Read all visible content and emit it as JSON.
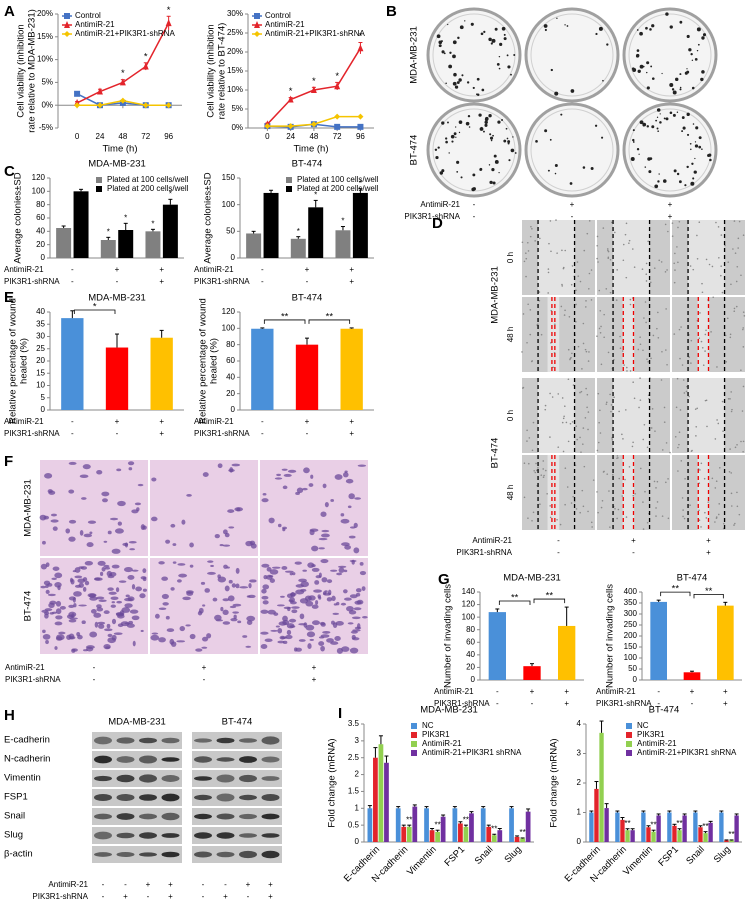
{
  "letters": [
    "A",
    "B",
    "C",
    "D",
    "E",
    "F",
    "G",
    "H",
    "I"
  ],
  "colony_images": {
    "rows": [
      "MDA-MB-231",
      "BT-474"
    ],
    "treatments": [
      {
        "name": "AntimiR-21",
        "values": [
          "-",
          "+",
          "+"
        ]
      },
      {
        "name": "PIK3R1-shRNA",
        "values": [
          "-",
          "-",
          "+"
        ]
      }
    ]
  },
  "wound_images": {
    "groups": [
      {
        "name": "MDA-MB-231",
        "rows": [
          "0 h",
          "48 h"
        ]
      },
      {
        "name": "BT-474",
        "rows": [
          "0 h",
          "48 h"
        ]
      }
    ],
    "treatments": [
      {
        "name": "AntimiR-21",
        "values": [
          "-",
          "+",
          "+"
        ]
      },
      {
        "name": "PIK3R1-shRNA",
        "values": [
          "-",
          "-",
          "+"
        ]
      }
    ]
  },
  "invasion_images": {
    "rows": [
      "MDA-MB-231",
      "BT-474"
    ],
    "treatments": [
      {
        "name": "AntimiR-21",
        "values": [
          "-",
          "+",
          "+"
        ]
      },
      {
        "name": "PIK3R1-shRNA",
        "values": [
          "-",
          "-",
          "+"
        ]
      }
    ]
  },
  "western_blot": {
    "cell_lines": [
      "MDA-MB-231",
      "BT-474"
    ],
    "proteins": [
      "E-cadherin",
      "N-cadherin",
      "Vimentin",
      "FSP1",
      "Snail",
      "Slug",
      "β-actin"
    ],
    "treatments": [
      {
        "name": "AntimiR-21",
        "values": [
          "-",
          "-",
          "+",
          "+",
          "-",
          "-",
          "+",
          "+"
        ]
      },
      {
        "name": "PIK3R1-shRNA",
        "values": [
          "-",
          "+",
          "-",
          "+",
          "-",
          "+",
          "-",
          "+"
        ]
      }
    ]
  },
  "chart_data": [
    {
      "type": "line",
      "ylabel": "Cell viability (inhibition rate relative to MDA-MB-231)",
      "xlabel": "Time (h)",
      "x": [
        0,
        24,
        48,
        72,
        96
      ],
      "xlim": [
        -20,
        110
      ],
      "xticks": [
        0,
        24,
        48,
        72,
        96
      ],
      "ylim": [
        -5,
        20
      ],
      "yticks": [
        {
          "value": -5,
          "label": "-5%"
        },
        {
          "value": 0,
          "label": "0%"
        },
        {
          "value": 5,
          "label": "5%"
        },
        {
          "value": 10,
          "label": "10%"
        },
        {
          "value": 15,
          "label": "15%"
        },
        {
          "value": 20,
          "label": "20%"
        }
      ],
      "legend": "upper left",
      "series": [
        {
          "name": "Control",
          "color": "#4472c4",
          "marker": "square",
          "values": [
            2.5,
            0,
            0.5,
            0,
            0
          ]
        },
        {
          "name": "AntimiR-21",
          "color": "#e3242b",
          "marker": "triangle",
          "values": [
            0.5,
            3,
            5,
            8.5,
            18
          ],
          "errors": [
            0.3,
            0.5,
            0.6,
            0.8,
            1.5
          ],
          "point_labels": [
            null,
            null,
            "*",
            "*",
            "*"
          ]
        },
        {
          "name": "AntimiR-21+PIK3R1-shRNA",
          "color": "#f5c400",
          "marker": "diamond",
          "values": [
            0,
            0,
            1,
            0,
            0
          ]
        }
      ]
    },
    {
      "type": "line",
      "ylabel": "Cell viability (inhibition rate relative to BT-474)",
      "xlabel": "Time (h)",
      "x": [
        0,
        24,
        48,
        72,
        96
      ],
      "xlim": [
        -20,
        110
      ],
      "xticks": [
        0,
        24,
        48,
        72,
        96
      ],
      "ylim": [
        0,
        30
      ],
      "yticks": [
        {
          "value": 0,
          "label": "0%"
        },
        {
          "value": 5,
          "label": "5%"
        },
        {
          "value": 10,
          "label": "10%"
        },
        {
          "value": 15,
          "label": "15%"
        },
        {
          "value": 20,
          "label": "20%"
        },
        {
          "value": 25,
          "label": "25%"
        },
        {
          "value": 30,
          "label": "30%"
        }
      ],
      "legend": "upper left",
      "series": [
        {
          "name": "Control",
          "color": "#4472c4",
          "marker": "square",
          "values": [
            0.5,
            0.3,
            1,
            0.3,
            0.3
          ]
        },
        {
          "name": "AntimiR-21",
          "color": "#e3242b",
          "marker": "triangle",
          "values": [
            1,
            7.5,
            10,
            11,
            21
          ],
          "errors": [
            0.3,
            0.5,
            0.7,
            1,
            1.5
          ],
          "point_labels": [
            null,
            "*",
            "*",
            "*",
            "*"
          ]
        },
        {
          "name": "AntimiR-21+PIK3R1-shRNA",
          "color": "#f5c400",
          "marker": "diamond",
          "values": [
            0.5,
            0.5,
            1,
            3,
            3
          ]
        }
      ]
    },
    {
      "type": "bar",
      "title": "MDA-MB-231",
      "ylabel": "Average colonies±SD",
      "categories": [
        null,
        null,
        null
      ],
      "ylim": [
        0,
        120
      ],
      "yticks": [
        0,
        20,
        40,
        60,
        80,
        100,
        120
      ],
      "legend": "upper right",
      "series": [
        {
          "name": "Plated at 100 cells/well",
          "color": "#808080",
          "values": [
            45,
            27,
            40
          ],
          "errors": [
            3,
            4,
            3
          ],
          "point_labels": [
            null,
            "*",
            "*"
          ]
        },
        {
          "name": "Plated at 200 cells/well",
          "color": "#000000",
          "values": [
            100,
            42,
            80
          ],
          "errors": [
            3,
            10,
            8
          ],
          "point_labels": [
            null,
            "*",
            "*"
          ]
        }
      ],
      "treatments": [
        {
          "name": "AntimiR-21",
          "values": [
            "-",
            "+",
            "+"
          ]
        },
        {
          "name": "PIK3R1-shRNA",
          "values": [
            "-",
            "-",
            "+"
          ]
        }
      ]
    },
    {
      "type": "bar",
      "title": "BT-474",
      "ylabel": "Average colonies±SD",
      "categories": [
        null,
        null,
        null
      ],
      "ylim": [
        0,
        150
      ],
      "yticks": [
        0,
        50,
        100,
        150
      ],
      "legend": "upper right",
      "series": [
        {
          "name": "Plated at 100 cells/well",
          "color": "#808080",
          "values": [
            46,
            36,
            52
          ],
          "errors": [
            4,
            4,
            7
          ],
          "point_labels": [
            null,
            "*",
            "*"
          ]
        },
        {
          "name": "Plated at 200 cells/well",
          "color": "#000000",
          "values": [
            122,
            95,
            122
          ],
          "errors": [
            5,
            13,
            8
          ],
          "point_labels": [
            null,
            "*",
            "*"
          ]
        }
      ],
      "treatments": [
        {
          "name": "AntimiR-21",
          "values": [
            "-",
            "+",
            "+"
          ]
        },
        {
          "name": "PIK3R1-shRNA",
          "values": [
            "-",
            "-",
            "+"
          ]
        }
      ]
    },
    {
      "type": "bar",
      "title": "MDA-MB-231",
      "ylabel": "Relative percentage of wound healed (%)",
      "categories": [
        null,
        null,
        null
      ],
      "values": [
        37.5,
        25.5,
        29.5
      ],
      "errors": [
        3,
        5.5,
        3
      ],
      "colors": [
        "#4a90d9",
        "#ff0000",
        "#ffc000"
      ],
      "ylim": [
        0,
        40
      ],
      "yticks": [
        0,
        5,
        10,
        15,
        20,
        25,
        30,
        35,
        40
      ],
      "significance": [
        "*",
        null
      ],
      "treatments": [
        {
          "name": "AntimiR-21",
          "values": [
            "-",
            "+",
            "+"
          ]
        },
        {
          "name": "PIK3R1-shRNA",
          "values": [
            "-",
            "-",
            "+"
          ]
        }
      ]
    },
    {
      "type": "bar",
      "title": "BT-474",
      "ylabel": "Relative percentage of wound healed (%)",
      "categories": [
        null,
        null,
        null
      ],
      "values": [
        99.5,
        80,
        99.5
      ],
      "errors": [
        1,
        8,
        1
      ],
      "colors": [
        "#4a90d9",
        "#ff0000",
        "#ffc000"
      ],
      "ylim": [
        0,
        120
      ],
      "yticks": [
        0,
        20,
        40,
        60,
        80,
        100,
        120
      ],
      "significance": [
        "**",
        "**"
      ],
      "treatments": [
        {
          "name": "AntimiR-21",
          "values": [
            "-",
            "+",
            "+"
          ]
        },
        {
          "name": "PIK3R1-shRNA",
          "values": [
            "-",
            "-",
            "+"
          ]
        }
      ]
    },
    {
      "type": "bar",
      "title": "MDA-MB-231",
      "ylabel": "Number of invading cells",
      "categories": [
        null,
        null,
        null
      ],
      "values": [
        108,
        22,
        86
      ],
      "errors": [
        5,
        4,
        30
      ],
      "colors": [
        "#4a90d9",
        "#ff0000",
        "#ffc000"
      ],
      "ylim": [
        0,
        140
      ],
      "yticks": [
        0,
        20,
        40,
        60,
        80,
        100,
        120,
        140
      ],
      "significance": [
        "**",
        "**"
      ],
      "treatments": [
        {
          "name": "AntimiR-21",
          "values": [
            "-",
            "+",
            "+"
          ]
        },
        {
          "name": "PIK3R1-shRNA",
          "values": [
            "-",
            "-",
            "+"
          ]
        }
      ]
    },
    {
      "type": "bar",
      "title": "BT-474",
      "ylabel": "Number of invading cells",
      "categories": [
        null,
        null,
        null
      ],
      "values": [
        355,
        35,
        338
      ],
      "errors": [
        8,
        5,
        15
      ],
      "colors": [
        "#4a90d9",
        "#ff0000",
        "#ffc000"
      ],
      "ylim": [
        0,
        400
      ],
      "yticks": [
        0,
        50,
        100,
        150,
        200,
        250,
        300,
        350,
        400
      ],
      "significance": [
        "**",
        "**"
      ],
      "treatments": [
        {
          "name": "AntimiR-21",
          "values": [
            "-",
            "+",
            "+"
          ]
        },
        {
          "name": "PIK3R1-shRNA",
          "values": [
            "-",
            "-",
            "+"
          ]
        }
      ]
    },
    {
      "type": "bar",
      "title": "MDA-MB-231",
      "ylabel": "Fold change (mRNA)",
      "categories": [
        "E-cadherin",
        "N-cadherin",
        "Vimentin",
        "FSP1",
        "Snail",
        "Slug"
      ],
      "ylim": [
        0,
        3.5
      ],
      "yticks": [
        0,
        0.5,
        1,
        1.5,
        2,
        2.5,
        3,
        3.5
      ],
      "legend": "upper center",
      "series": [
        {
          "name": "NC",
          "color": "#4a90d9",
          "values": [
            1,
            1,
            1,
            1,
            1,
            1
          ],
          "errors": [
            0.08,
            0.05,
            0.05,
            0.05,
            0.05,
            0.05
          ]
        },
        {
          "name": "PIK3R1",
          "color": "#e3242b",
          "values": [
            2.5,
            0.45,
            0.35,
            0.55,
            0.45,
            0.15
          ],
          "errors": [
            0.3,
            0.05,
            0.05,
            0.05,
            0.05,
            0.03
          ]
        },
        {
          "name": "AntimiR-21",
          "color": "#92d050",
          "values": [
            2.9,
            0.45,
            0.3,
            0.45,
            0.2,
            0.1
          ],
          "errors": [
            0.25,
            0.05,
            0.05,
            0.05,
            0.03,
            0.02
          ],
          "point_labels": [
            null,
            "**",
            "**",
            "**",
            "**",
            "**"
          ]
        },
        {
          "name": "AntimiR-21+PIK3R1 shRNA",
          "color": "#7030a0",
          "values": [
            2.35,
            1.05,
            0.75,
            0.85,
            0.35,
            0.9
          ],
          "errors": [
            0.2,
            0.05,
            0.05,
            0.05,
            0.05,
            0.08
          ]
        }
      ]
    },
    {
      "type": "bar",
      "title": "BT-474",
      "ylabel": "Fold change (mRNA)",
      "categories": [
        "E-cadherin",
        "N-cadherin",
        "Vimentin",
        "FSP1",
        "Snail",
        "Slug"
      ],
      "ylim": [
        0,
        4
      ],
      "yticks": [
        0,
        1,
        2,
        3,
        4
      ],
      "legend": "upper center",
      "series": [
        {
          "name": "NC",
          "color": "#4a90d9",
          "values": [
            1,
            1,
            1,
            1,
            1,
            1
          ],
          "errors": [
            0.05,
            0.05,
            0.05,
            0.05,
            0.05,
            0.05
          ]
        },
        {
          "name": "PIK3R1",
          "color": "#e3242b",
          "values": [
            1.8,
            0.75,
            0.5,
            0.55,
            0.5,
            0.05
          ],
          "errors": [
            0.25,
            0.08,
            0.05,
            0.05,
            0.05,
            0.02
          ]
        },
        {
          "name": "AntimiR-21",
          "color": "#92d050",
          "values": [
            3.7,
            0.4,
            0.35,
            0.4,
            0.3,
            0.05
          ],
          "errors": [
            0.4,
            0.05,
            0.05,
            0.05,
            0.05,
            0.02
          ],
          "point_labels": [
            null,
            "**",
            "**",
            "**",
            "**",
            "**"
          ]
        },
        {
          "name": "AntimiR-21+PIK3R1 shRNA",
          "color": "#7030a0",
          "values": [
            1.15,
            0.4,
            0.9,
            0.9,
            0.65,
            0.9
          ],
          "errors": [
            0.15,
            0.05,
            0.05,
            0.05,
            0.05,
            0.05
          ]
        }
      ]
    }
  ]
}
